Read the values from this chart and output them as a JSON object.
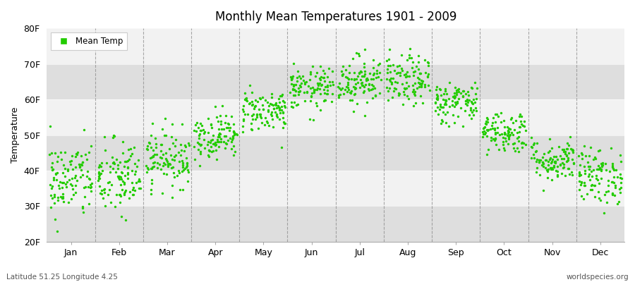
{
  "title": "Monthly Mean Temperatures 1901 - 2009",
  "ylabel": "Temperature",
  "xlabel_labels": [
    "Jan",
    "Feb",
    "Mar",
    "Apr",
    "May",
    "Jun",
    "Jul",
    "Aug",
    "Sep",
    "Oct",
    "Nov",
    "Dec"
  ],
  "ytick_labels": [
    "20F",
    "30F",
    "40F",
    "50F",
    "60F",
    "70F",
    "80F"
  ],
  "ytick_values": [
    20,
    30,
    40,
    50,
    60,
    70,
    80
  ],
  "ylim": [
    20,
    80
  ],
  "dot_color": "#22CC00",
  "dot_size": 6,
  "legend_label": "Mean Temp",
  "footer_left": "Latitude 51.25 Longitude 4.25",
  "footer_right": "worldspecies.org",
  "bg_color": "#FFFFFF",
  "plot_bg_color": "#E8E8E8",
  "light_band_color": "#F2F2F2",
  "dark_band_color": "#DEDEDE",
  "grid_color": "#888888",
  "mean_temps_f": [
    37.5,
    37.8,
    43.5,
    49.8,
    57.0,
    63.0,
    65.5,
    65.2,
    59.3,
    51.0,
    43.0,
    38.5
  ],
  "std_devs_f": [
    5.5,
    5.5,
    4.0,
    3.2,
    3.0,
    3.0,
    3.5,
    3.5,
    3.0,
    3.0,
    3.0,
    4.0
  ],
  "n_years": 109,
  "seed": 42
}
